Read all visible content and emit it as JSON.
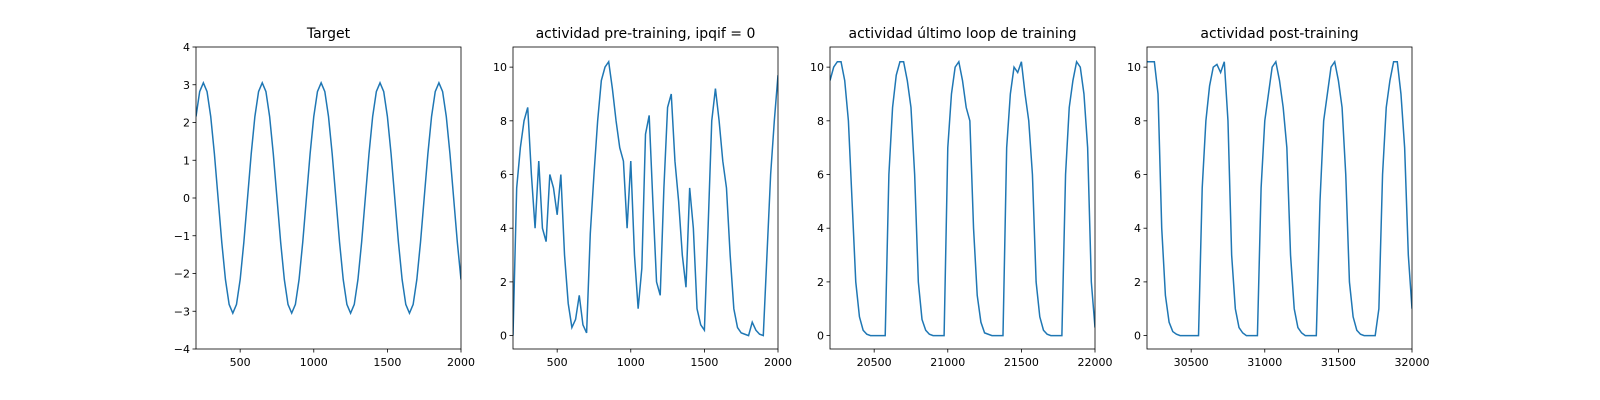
{
  "chart_data": [
    {
      "type": "line",
      "title": "Target",
      "color": "#1f77b4",
      "xlim": [
        200,
        2000
      ],
      "xticks": [
        500,
        1000,
        1500,
        2000
      ],
      "ylim": [
        -4,
        4
      ],
      "yticks": [
        {
          "value": -4,
          "label": "−4"
        },
        {
          "value": -3,
          "label": "−3"
        },
        {
          "value": -2,
          "label": "−2"
        },
        {
          "value": -1,
          "label": "−1"
        },
        0,
        1,
        2,
        3,
        4
      ],
      "x": [
        200,
        225,
        250,
        275,
        300,
        325,
        350,
        375,
        400,
        425,
        450,
        475,
        500,
        525,
        550,
        575,
        600,
        625,
        650,
        675,
        700,
        725,
        750,
        775,
        800,
        825,
        850,
        875,
        900,
        925,
        950,
        975,
        1000,
        1025,
        1050,
        1075,
        1100,
        1125,
        1150,
        1175,
        1200,
        1225,
        1250,
        1275,
        1300,
        1325,
        1350,
        1375,
        1400,
        1425,
        1450,
        1475,
        1500,
        1525,
        1550,
        1575,
        1600,
        1625,
        1650,
        1675,
        1700,
        1725,
        1750,
        1775,
        1800,
        1825,
        1850,
        1875,
        1900,
        1925,
        1950,
        1975,
        2000
      ],
      "values": [
        2.16,
        2.82,
        3.05,
        2.82,
        2.16,
        1.17,
        0,
        -1.17,
        -2.16,
        -2.82,
        -3.05,
        -2.82,
        -2.16,
        -1.17,
        0,
        1.17,
        2.16,
        2.82,
        3.05,
        2.82,
        2.16,
        1.17,
        0,
        -1.17,
        -2.16,
        -2.82,
        -3.05,
        -2.82,
        -2.16,
        -1.17,
        0,
        1.17,
        2.16,
        2.82,
        3.05,
        2.82,
        2.16,
        1.17,
        0,
        -1.17,
        -2.16,
        -2.82,
        -3.05,
        -2.82,
        -2.16,
        -1.17,
        0,
        1.17,
        2.16,
        2.82,
        3.05,
        2.82,
        2.16,
        1.17,
        0,
        -1.17,
        -2.16,
        -2.82,
        -3.05,
        -2.82,
        -2.16,
        -1.17,
        0,
        1.17,
        2.16,
        2.82,
        3.05,
        2.82,
        2.16,
        1.17,
        0,
        -1.17,
        -2.16
      ]
    },
    {
      "type": "line",
      "title": "actividad pre-training, ipqif = 0",
      "color": "#1f77b4",
      "xlim": [
        200,
        2000
      ],
      "xticks": [
        500,
        1000,
        1500,
        2000
      ],
      "ylim": [
        -0.5,
        10.75
      ],
      "yticks": [
        0,
        2,
        4,
        6,
        8,
        10
      ],
      "x": [
        200,
        225,
        250,
        275,
        300,
        325,
        350,
        375,
        400,
        425,
        450,
        475,
        500,
        525,
        550,
        575,
        600,
        625,
        650,
        675,
        700,
        725,
        750,
        775,
        800,
        825,
        850,
        875,
        900,
        925,
        950,
        975,
        1000,
        1025,
        1050,
        1075,
        1100,
        1125,
        1150,
        1175,
        1200,
        1225,
        1250,
        1275,
        1300,
        1325,
        1350,
        1375,
        1400,
        1425,
        1450,
        1475,
        1500,
        1525,
        1550,
        1575,
        1600,
        1625,
        1650,
        1675,
        1700,
        1725,
        1750,
        1775,
        1800,
        1825,
        1850,
        1875,
        1900,
        1925,
        1950,
        1975,
        2000
      ],
      "values": [
        0,
        5.5,
        7,
        8,
        8.5,
        6,
        4,
        6.5,
        4,
        3.5,
        6,
        5.5,
        4.5,
        6,
        3,
        1.2,
        0.3,
        0.6,
        1.5,
        0.4,
        0.1,
        3.8,
        6,
        8,
        9.5,
        10,
        10.2,
        9.2,
        8,
        7,
        6.5,
        4,
        6.5,
        3,
        1,
        2.5,
        7.5,
        8.2,
        5,
        2,
        1.5,
        5.5,
        8.5,
        9,
        6.5,
        5,
        3,
        1.8,
        5.5,
        4,
        1,
        0.4,
        0.2,
        4,
        8,
        9.2,
        8,
        6.5,
        5.5,
        3,
        1,
        0.3,
        0.1,
        0.05,
        0,
        0.5,
        0.2,
        0.05,
        0,
        3,
        6,
        8,
        9.7
      ]
    },
    {
      "type": "line",
      "title": "actividad último loop de training",
      "color": "#1f77b4",
      "xlim": [
        20200,
        22000
      ],
      "xticks": [
        20500,
        21000,
        21500,
        22000
      ],
      "ylim": [
        -0.5,
        10.75
      ],
      "yticks": [
        0,
        2,
        4,
        6,
        8,
        10
      ],
      "x": [
        20200,
        20225,
        20250,
        20275,
        20300,
        20325,
        20350,
        20375,
        20400,
        20425,
        20450,
        20475,
        20500,
        20525,
        20550,
        20575,
        20600,
        20625,
        20650,
        20675,
        20700,
        20725,
        20750,
        20775,
        20800,
        20825,
        20850,
        20875,
        20900,
        20925,
        20950,
        20975,
        21000,
        21025,
        21050,
        21075,
        21100,
        21125,
        21150,
        21175,
        21200,
        21225,
        21250,
        21275,
        21300,
        21325,
        21350,
        21375,
        21400,
        21425,
        21450,
        21475,
        21500,
        21525,
        21550,
        21575,
        21600,
        21625,
        21650,
        21675,
        21700,
        21725,
        21750,
        21775,
        21800,
        21825,
        21850,
        21875,
        21900,
        21925,
        21950,
        21975,
        22000
      ],
      "values": [
        9.5,
        10,
        10.2,
        10.2,
        9.5,
        8,
        5,
        2,
        0.7,
        0.2,
        0.05,
        0,
        0,
        0,
        0,
        0,
        6,
        8.5,
        9.7,
        10.2,
        10.2,
        9.5,
        8.5,
        6,
        2,
        0.6,
        0.2,
        0.05,
        0,
        0,
        0,
        0,
        7,
        9,
        10,
        10.2,
        9.5,
        8.5,
        8,
        4,
        1.5,
        0.5,
        0.1,
        0.05,
        0,
        0,
        0,
        0,
        7,
        9,
        10,
        9.8,
        10.2,
        9,
        8,
        6,
        2,
        0.7,
        0.2,
        0.05,
        0,
        0,
        0,
        0,
        6,
        8.5,
        9.5,
        10.2,
        10,
        9,
        7,
        2,
        0.3
      ]
    },
    {
      "type": "line",
      "title": "actividad post-training",
      "color": "#1f77b4",
      "xlim": [
        30200,
        32000
      ],
      "xticks": [
        30500,
        31000,
        31500,
        32000
      ],
      "ylim": [
        -0.5,
        10.75
      ],
      "yticks": [
        0,
        2,
        4,
        6,
        8,
        10
      ],
      "x": [
        30200,
        30225,
        30250,
        30275,
        30300,
        30325,
        30350,
        30375,
        30400,
        30425,
        30450,
        30475,
        30500,
        30525,
        30550,
        30575,
        30600,
        30625,
        30650,
        30675,
        30700,
        30725,
        30750,
        30775,
        30800,
        30825,
        30850,
        30875,
        30900,
        30925,
        30950,
        30975,
        31000,
        31025,
        31050,
        31075,
        31100,
        31125,
        31150,
        31175,
        31200,
        31225,
        31250,
        31275,
        31300,
        31325,
        31350,
        31375,
        31400,
        31425,
        31450,
        31475,
        31500,
        31525,
        31550,
        31575,
        31600,
        31625,
        31650,
        31675,
        31700,
        31725,
        31750,
        31775,
        31800,
        31825,
        31850,
        31875,
        31900,
        31925,
        31950,
        31975,
        32000
      ],
      "values": [
        10.2,
        10.2,
        10.2,
        9,
        4,
        1.5,
        0.5,
        0.15,
        0.05,
        0,
        0,
        0,
        0,
        0,
        0,
        5.5,
        8,
        9.3,
        10,
        10.1,
        9.8,
        10.2,
        8,
        3,
        1,
        0.3,
        0.1,
        0,
        0,
        0,
        0,
        5.5,
        8,
        9,
        10,
        10.2,
        9.5,
        8.5,
        7,
        3,
        1,
        0.3,
        0.1,
        0,
        0,
        0,
        0,
        5,
        8,
        9,
        10,
        10.2,
        9.5,
        8.5,
        6,
        2,
        0.7,
        0.2,
        0.05,
        0,
        0,
        0,
        0,
        1,
        6,
        8.5,
        9.5,
        10.2,
        10.2,
        9,
        7,
        3,
        1
      ]
    }
  ]
}
